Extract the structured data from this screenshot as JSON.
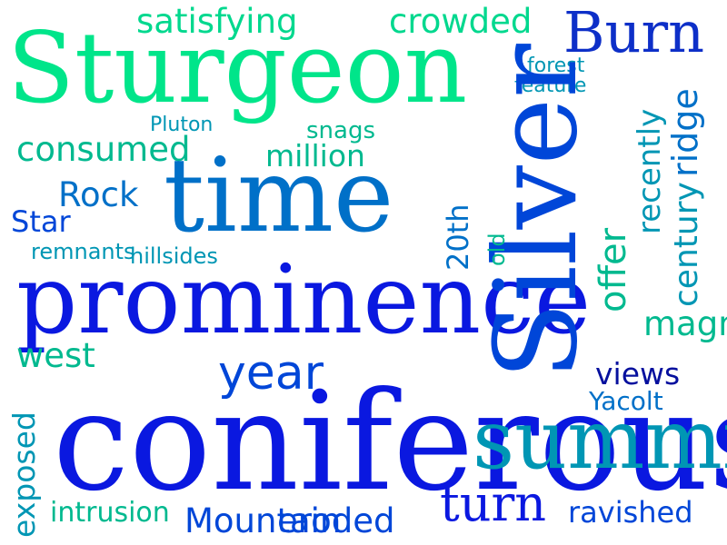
{
  "colors": {
    "background": "#ffffff",
    "palette": [
      "#00e58a",
      "#00b98f",
      "#0096b4",
      "#0070c8",
      "#0046d8",
      "#0a18e0",
      "#06109e"
    ]
  },
  "words": [
    "Sturgeon",
    "satisfying",
    "crowded",
    "Burn",
    "forest",
    "feature",
    "Pluton",
    "snags",
    "consumed",
    "million",
    "time",
    "Rock",
    "Star",
    "remnants",
    "hillsides",
    "prominence",
    "magma",
    "west",
    "year",
    "views",
    "Yacolt",
    "coniferous",
    "summit",
    "turn",
    "intrusion",
    "Mountain",
    "eroded",
    "ravished",
    "Silver",
    "ridge",
    "recently",
    "offer",
    "century",
    "old",
    "20th",
    "exposed"
  ]
}
